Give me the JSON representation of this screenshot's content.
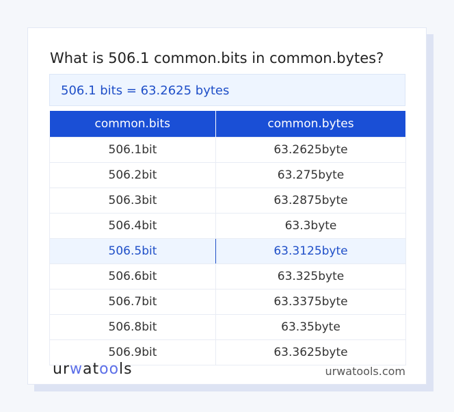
{
  "title": "What is 506.1 common.bits in common.bytes?",
  "result": "506.1 bits = 63.2625 bytes",
  "table": {
    "headers": [
      "common.bits",
      "common.bytes"
    ],
    "rows": [
      [
        "506.1bit",
        "63.2625byte"
      ],
      [
        "506.2bit",
        "63.275byte"
      ],
      [
        "506.3bit",
        "63.2875byte"
      ],
      [
        "506.4bit",
        "63.3byte"
      ],
      [
        "506.5bit",
        "63.3125byte"
      ],
      [
        "506.6bit",
        "63.325byte"
      ],
      [
        "506.7bit",
        "63.3375byte"
      ],
      [
        "506.8bit",
        "63.35byte"
      ],
      [
        "506.9bit",
        "63.3625byte"
      ]
    ],
    "highlighted_row": 4
  },
  "footer": {
    "logo_text": "urwatools",
    "site": "urwatools.com"
  },
  "colors": {
    "accent": "#1a4fd6",
    "highlight_bg": "#eef5ff"
  }
}
